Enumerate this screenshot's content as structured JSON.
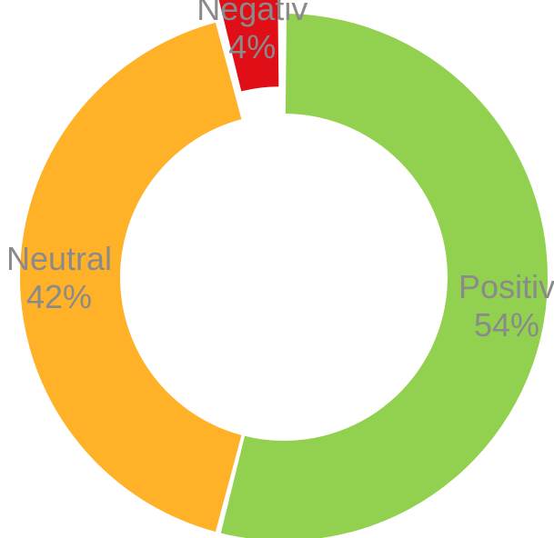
{
  "chart_data": {
    "type": "pie",
    "donut": true,
    "title": "",
    "slices": [
      {
        "label": "Positiv",
        "value": 54,
        "value_label": "54%",
        "color": "#92d050",
        "exploded": false
      },
      {
        "label": "Neutral",
        "value": 42,
        "value_label": "42%",
        "color": "#ffb128",
        "exploded": false
      },
      {
        "label": "Negativ",
        "value": 4,
        "value_label": "4%",
        "color": "#e00f17",
        "exploded": true
      }
    ],
    "legend": "none"
  }
}
